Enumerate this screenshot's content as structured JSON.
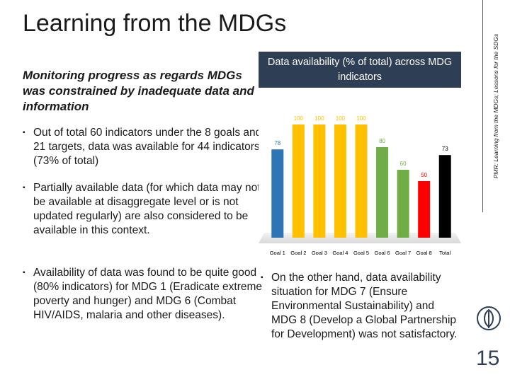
{
  "slide": {
    "title": "Learning from the MDGs",
    "side_caption": "PMR: Learning from the MDGs; Lessons for the SDGs",
    "subheading": "Monitoring progress as regards MDGs was constrained by inadequate data and information",
    "page_number": "15"
  },
  "bullets": {
    "marker": "▪",
    "b1": "Out of total 60 indicators under the 8 goals and 21 targets, data was available for 44 indicators (73% of total)",
    "b2": "Partially available data (for which data may not be available at disaggregate level or is not updated regularly) are also considered to be available in this context.",
    "b3": "Availability of data was found to be quite good (80% indicators) for MDG 1 (Eradicate extreme poverty and hunger) and MDG 6 (Combat HIV/AIDS, malaria and other diseases).",
    "b4": "On the other hand, data availability situation for MDG 7 (Ensure Environmental Sustainability) and MDG 8 (Develop a Global Partnership for Development) was not satisfactory."
  },
  "chart_data": {
    "type": "bar",
    "title": "Data availability (% of total) across MDG indicators",
    "categories": [
      "Goal 1",
      "Goal 2",
      "Goal 3",
      "Goal 4",
      "Goal 5",
      "Goal 6",
      "Goal 7",
      "Goal 8",
      "Total"
    ],
    "values": [
      78,
      100,
      100,
      100,
      100,
      80,
      60,
      50,
      73
    ],
    "colors": [
      "#2e75b6",
      "#ffc000",
      "#ffc000",
      "#ffc000",
      "#ffc000",
      "#70ad47",
      "#70ad47",
      "#ff0000",
      "#000000"
    ],
    "label_colors": [
      "#2e75b6",
      "#ffc000",
      "#ffc000",
      "#ffc000",
      "#ffc000",
      "#70ad47",
      "#70ad47",
      "#ff0000",
      "#000000"
    ],
    "ylim": [
      0,
      100
    ],
    "xlabel": "",
    "ylabel": "",
    "grid": false
  }
}
